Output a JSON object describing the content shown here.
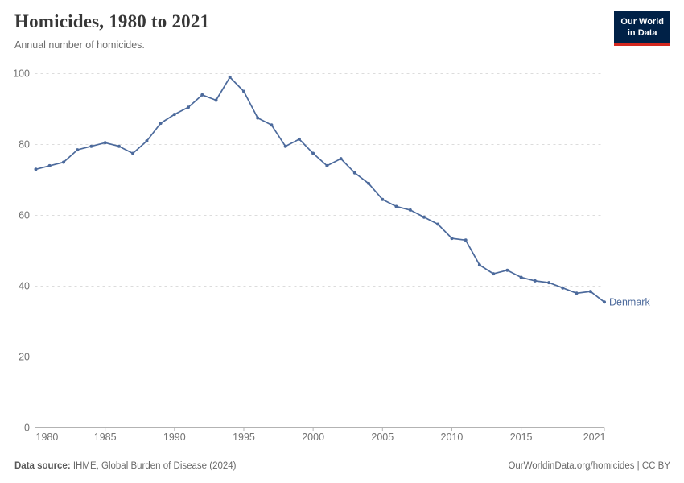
{
  "header": {
    "title": "Homicides, 1980 to 2021",
    "subtitle": "Annual number of homicides.",
    "logo": {
      "line1": "Our World",
      "line2": "in Data",
      "bg": "#002147",
      "accent": "#d4281f"
    }
  },
  "chart_data": {
    "type": "line",
    "title": "Homicides, 1980 to 2021",
    "subtitle": "Annual number of homicides.",
    "xlabel": "",
    "ylabel": "",
    "xlim": [
      1980,
      2021
    ],
    "ylim": [
      0,
      100
    ],
    "x_ticks": [
      1980,
      1985,
      1990,
      1995,
      2000,
      2005,
      2010,
      2015,
      2021
    ],
    "y_ticks": [
      0,
      20,
      40,
      60,
      80,
      100
    ],
    "grid": "dashed-horizontal",
    "legend": "line-end-label",
    "series": [
      {
        "name": "Denmark",
        "color": "#4c6a9c",
        "x": [
          1980,
          1981,
          1982,
          1983,
          1984,
          1985,
          1986,
          1987,
          1988,
          1989,
          1990,
          1991,
          1992,
          1993,
          1994,
          1995,
          1996,
          1997,
          1998,
          1999,
          2000,
          2001,
          2002,
          2003,
          2004,
          2005,
          2006,
          2007,
          2008,
          2009,
          2010,
          2011,
          2012,
          2013,
          2014,
          2015,
          2016,
          2017,
          2018,
          2019,
          2020,
          2021
        ],
        "values": [
          73,
          74,
          75,
          78.5,
          79.5,
          80.5,
          79.5,
          77.5,
          81,
          86,
          88.5,
          90.5,
          94,
          92.5,
          99,
          95,
          87.5,
          85.5,
          79.5,
          81.5,
          77.5,
          74,
          76,
          72,
          69,
          64.5,
          62.5,
          61.5,
          59.5,
          57.5,
          53.5,
          53,
          46,
          43.5,
          44.5,
          42.5,
          41.5,
          41,
          39.5,
          38,
          38.5,
          35.5
        ]
      }
    ]
  },
  "footer": {
    "source_label": "Data source:",
    "source_text": " IHME, Global Burden of Disease (2024)",
    "credit": "OurWorldinData.org/homicides | CC BY"
  },
  "colors": {
    "line": "#4c6a9c",
    "grid": "#dcdcdc",
    "axis": "#b3b3b3",
    "tick_text": "#737373",
    "title": "#373737",
    "subtitle": "#6d6d6d",
    "footer": "#6a6a6a"
  }
}
